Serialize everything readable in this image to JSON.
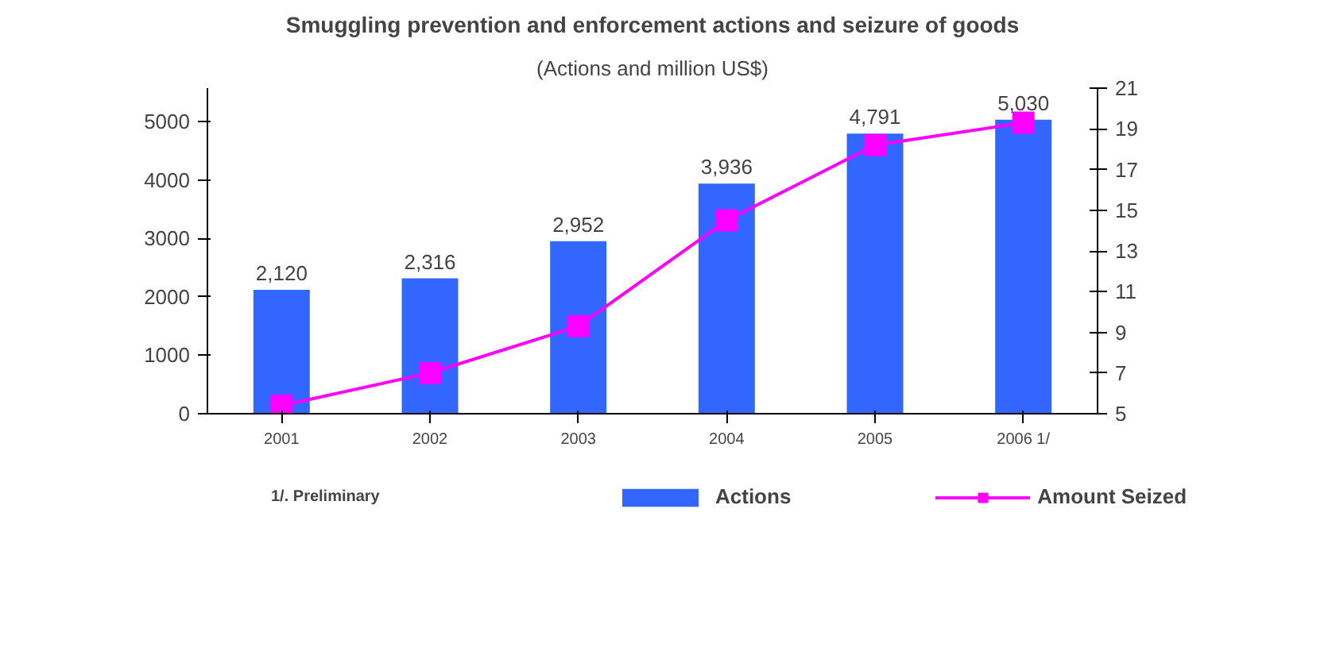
{
  "chart_data": {
    "type": "bar",
    "title": "Smuggling prevention and enforcement actions and seizure of goods",
    "subtitle": "(Actions and million US$)",
    "categories": [
      "2001",
      "2002",
      "2003",
      "2004",
      "2005",
      "2006 1/"
    ],
    "series": [
      {
        "name": "Actions",
        "color": "#3366ff",
        "values": [
          2120,
          2316,
          2952,
          3936,
          4791,
          5030
        ],
        "value_labels": [
          "2,120",
          "2,316",
          "2,952",
          "3,936",
          "4,791",
          "5,030"
        ]
      },
      {
        "name": "Amount Seized",
        "type": "line",
        "axis": "y2",
        "color": "#ff00ff",
        "marker": "square",
        "values": [
          5.4,
          7.0,
          9.3,
          14.5,
          18.2,
          19.3
        ]
      }
    ],
    "ylim": [
      0,
      5570
    ],
    "yticks": [
      0,
      1000,
      2000,
      3000,
      4000,
      5000
    ],
    "y2lim": [
      5,
      21
    ],
    "y2ticks": [
      5,
      7,
      9,
      11,
      13,
      15,
      17,
      19,
      21
    ],
    "annotations": [
      "1/. Preliminary"
    ],
    "legend": "bottom",
    "grid": false
  }
}
